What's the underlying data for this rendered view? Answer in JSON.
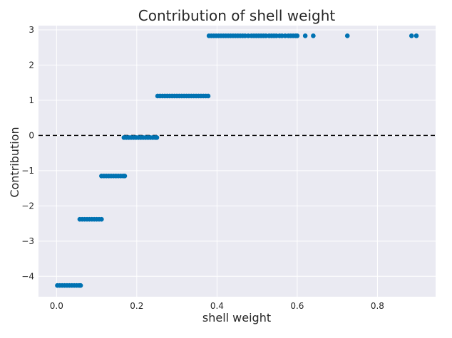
{
  "chart_data": {
    "type": "scatter",
    "title": "Contribution of shell weight",
    "xlabel": "shell weight",
    "ylabel": "Contribution",
    "xlim": [
      -0.045,
      0.945
    ],
    "ylim": [
      -4.58,
      3.12
    ],
    "x_ticks": [
      0.0,
      0.2,
      0.4,
      0.6,
      0.8
    ],
    "x_tick_labels": [
      "0.0",
      "0.2",
      "0.4",
      "0.6",
      "0.8"
    ],
    "y_ticks": [
      -4,
      -3,
      -2,
      -1,
      0,
      1,
      2,
      3
    ],
    "y_tick_labels": [
      "−4",
      "−3",
      "−2",
      "−1",
      "0",
      "1",
      "2",
      "3"
    ],
    "reference_line": {
      "y": 0,
      "style": "dashed",
      "color": "#000000"
    },
    "marker_color": "#0072b2",
    "grid": true,
    "series": [
      {
        "name": "contribution",
        "points": [
          {
            "x": 0.002,
            "y": -4.26
          },
          {
            "x": 0.008,
            "y": -4.26
          },
          {
            "x": 0.014,
            "y": -4.26
          },
          {
            "x": 0.02,
            "y": -4.26
          },
          {
            "x": 0.026,
            "y": -4.26
          },
          {
            "x": 0.032,
            "y": -4.26
          },
          {
            "x": 0.038,
            "y": -4.26
          },
          {
            "x": 0.044,
            "y": -4.26
          },
          {
            "x": 0.05,
            "y": -4.26
          },
          {
            "x": 0.056,
            "y": -4.26
          },
          {
            "x": 0.06,
            "y": -4.26
          },
          {
            "x": 0.058,
            "y": -2.38
          },
          {
            "x": 0.064,
            "y": -2.38
          },
          {
            "x": 0.07,
            "y": -2.38
          },
          {
            "x": 0.076,
            "y": -2.38
          },
          {
            "x": 0.082,
            "y": -2.38
          },
          {
            "x": 0.088,
            "y": -2.38
          },
          {
            "x": 0.094,
            "y": -2.38
          },
          {
            "x": 0.1,
            "y": -2.38
          },
          {
            "x": 0.106,
            "y": -2.38
          },
          {
            "x": 0.112,
            "y": -2.38
          },
          {
            "x": 0.112,
            "y": -1.15
          },
          {
            "x": 0.118,
            "y": -1.15
          },
          {
            "x": 0.124,
            "y": -1.15
          },
          {
            "x": 0.13,
            "y": -1.15
          },
          {
            "x": 0.136,
            "y": -1.15
          },
          {
            "x": 0.142,
            "y": -1.15
          },
          {
            "x": 0.148,
            "y": -1.15
          },
          {
            "x": 0.154,
            "y": -1.15
          },
          {
            "x": 0.16,
            "y": -1.15
          },
          {
            "x": 0.166,
            "y": -1.15
          },
          {
            "x": 0.17,
            "y": -1.15
          },
          {
            "x": 0.168,
            "y": -0.06
          },
          {
            "x": 0.174,
            "y": -0.06
          },
          {
            "x": 0.18,
            "y": -0.06
          },
          {
            "x": 0.186,
            "y": -0.06
          },
          {
            "x": 0.192,
            "y": -0.06
          },
          {
            "x": 0.198,
            "y": -0.06
          },
          {
            "x": 0.204,
            "y": -0.06
          },
          {
            "x": 0.21,
            "y": -0.06
          },
          {
            "x": 0.216,
            "y": -0.06
          },
          {
            "x": 0.222,
            "y": -0.06
          },
          {
            "x": 0.228,
            "y": -0.06
          },
          {
            "x": 0.234,
            "y": -0.06
          },
          {
            "x": 0.24,
            "y": -0.06
          },
          {
            "x": 0.246,
            "y": -0.06
          },
          {
            "x": 0.25,
            "y": -0.06
          },
          {
            "x": 0.252,
            "y": 1.12
          },
          {
            "x": 0.258,
            "y": 1.12
          },
          {
            "x": 0.264,
            "y": 1.12
          },
          {
            "x": 0.27,
            "y": 1.12
          },
          {
            "x": 0.276,
            "y": 1.12
          },
          {
            "x": 0.282,
            "y": 1.12
          },
          {
            "x": 0.288,
            "y": 1.12
          },
          {
            "x": 0.294,
            "y": 1.12
          },
          {
            "x": 0.3,
            "y": 1.12
          },
          {
            "x": 0.306,
            "y": 1.12
          },
          {
            "x": 0.312,
            "y": 1.12
          },
          {
            "x": 0.318,
            "y": 1.12
          },
          {
            "x": 0.324,
            "y": 1.12
          },
          {
            "x": 0.33,
            "y": 1.12
          },
          {
            "x": 0.336,
            "y": 1.12
          },
          {
            "x": 0.342,
            "y": 1.12
          },
          {
            "x": 0.348,
            "y": 1.12
          },
          {
            "x": 0.354,
            "y": 1.12
          },
          {
            "x": 0.36,
            "y": 1.12
          },
          {
            "x": 0.366,
            "y": 1.12
          },
          {
            "x": 0.372,
            "y": 1.12
          },
          {
            "x": 0.378,
            "y": 1.12
          },
          {
            "x": 0.38,
            "y": 2.83
          },
          {
            "x": 0.386,
            "y": 2.83
          },
          {
            "x": 0.392,
            "y": 2.83
          },
          {
            "x": 0.398,
            "y": 2.83
          },
          {
            "x": 0.404,
            "y": 2.83
          },
          {
            "x": 0.41,
            "y": 2.83
          },
          {
            "x": 0.416,
            "y": 2.83
          },
          {
            "x": 0.422,
            "y": 2.83
          },
          {
            "x": 0.428,
            "y": 2.83
          },
          {
            "x": 0.434,
            "y": 2.83
          },
          {
            "x": 0.44,
            "y": 2.83
          },
          {
            "x": 0.446,
            "y": 2.83
          },
          {
            "x": 0.452,
            "y": 2.83
          },
          {
            "x": 0.458,
            "y": 2.83
          },
          {
            "x": 0.464,
            "y": 2.83
          },
          {
            "x": 0.47,
            "y": 2.83
          },
          {
            "x": 0.478,
            "y": 2.83
          },
          {
            "x": 0.486,
            "y": 2.83
          },
          {
            "x": 0.492,
            "y": 2.83
          },
          {
            "x": 0.498,
            "y": 2.83
          },
          {
            "x": 0.504,
            "y": 2.83
          },
          {
            "x": 0.51,
            "y": 2.83
          },
          {
            "x": 0.516,
            "y": 2.83
          },
          {
            "x": 0.522,
            "y": 2.83
          },
          {
            "x": 0.53,
            "y": 2.83
          },
          {
            "x": 0.536,
            "y": 2.83
          },
          {
            "x": 0.542,
            "y": 2.83
          },
          {
            "x": 0.548,
            "y": 2.83
          },
          {
            "x": 0.556,
            "y": 2.83
          },
          {
            "x": 0.562,
            "y": 2.83
          },
          {
            "x": 0.57,
            "y": 2.83
          },
          {
            "x": 0.578,
            "y": 2.83
          },
          {
            "x": 0.584,
            "y": 2.83
          },
          {
            "x": 0.59,
            "y": 2.83
          },
          {
            "x": 0.596,
            "y": 2.83
          },
          {
            "x": 0.6,
            "y": 2.83
          },
          {
            "x": 0.62,
            "y": 2.83
          },
          {
            "x": 0.64,
            "y": 2.83
          },
          {
            "x": 0.725,
            "y": 2.83
          },
          {
            "x": 0.885,
            "y": 2.83
          },
          {
            "x": 0.897,
            "y": 2.83
          }
        ]
      }
    ]
  }
}
